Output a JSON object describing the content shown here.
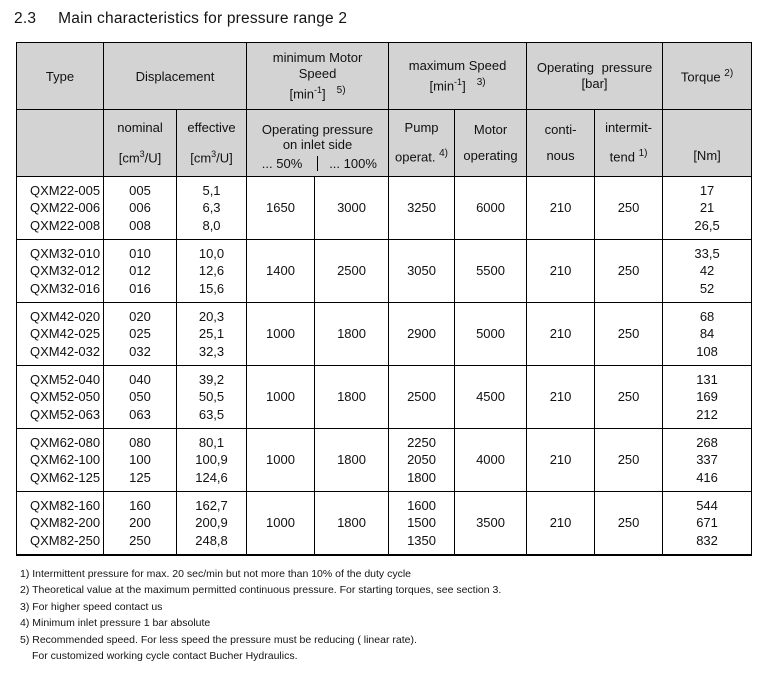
{
  "title": {
    "number": "2.3",
    "text": "Main characteristics for pressure range 2"
  },
  "table": {
    "header": {
      "type": "Type",
      "displacement": "Displacement",
      "min_speed": {
        "line1": "minimum Motor",
        "line2": "Speed",
        "unit_base": "[min",
        "unit_sup": "-1",
        "unit_close": "]",
        "footnote": "5)"
      },
      "max_speed": {
        "line1": "maximum Speed",
        "unit_base": "[min",
        "unit_sup": "-1",
        "unit_close": "]",
        "footnote": "3)"
      },
      "op_pressure": {
        "line1": "Operating pressure",
        "unit": "[bar]"
      },
      "torque": {
        "label": "Torque",
        "footnote": "2)"
      },
      "sub": {
        "nominal": "nominal",
        "effective": "effective",
        "cm_base": "[cm",
        "cm_sup": "3",
        "cm_close": "/U]",
        "inlet_title1": "Operating pressure",
        "inlet_title2": "on inlet side",
        "p50": "... 50%",
        "p100": "... 100%",
        "pump1": "Pump",
        "pump2": "operat.",
        "pump_fn": "4)",
        "motor1": "Motor",
        "motor2": "operating",
        "conti1": "conti-",
        "conti2": "nous",
        "intermit1": "intermit-",
        "intermit2": "tend",
        "intermit_fn": "1)",
        "nm": "[Nm]"
      }
    },
    "groups": [
      {
        "types": [
          "QXM22-005",
          "QXM22-006",
          "QXM22-008"
        ],
        "nominal": [
          "005",
          "006",
          "008"
        ],
        "effective": [
          "5,1",
          "6,3",
          "8,0"
        ],
        "min50": "1650",
        "min100": "3000",
        "pump": [
          "3250"
        ],
        "motor": "6000",
        "conti": "210",
        "intermit": "250",
        "torque": [
          "17",
          "21",
          "26,5"
        ]
      },
      {
        "types": [
          "QXM32-010",
          "QXM32-012",
          "QXM32-016"
        ],
        "nominal": [
          "010",
          "012",
          "016"
        ],
        "effective": [
          "10,0",
          "12,6",
          "15,6"
        ],
        "min50": "1400",
        "min100": "2500",
        "pump": [
          "3050"
        ],
        "motor": "5500",
        "conti": "210",
        "intermit": "250",
        "torque": [
          "33,5",
          "42",
          "52"
        ]
      },
      {
        "types": [
          "QXM42-020",
          "QXM42-025",
          "QXM42-032"
        ],
        "nominal": [
          "020",
          "025",
          "032"
        ],
        "effective": [
          "20,3",
          "25,1",
          "32,3"
        ],
        "min50": "1000",
        "min100": "1800",
        "pump": [
          "2900"
        ],
        "motor": "5000",
        "conti": "210",
        "intermit": "250",
        "torque": [
          "68",
          "84",
          "108"
        ]
      },
      {
        "types": [
          "QXM52-040",
          "QXM52-050",
          "QXM52-063"
        ],
        "nominal": [
          "040",
          "050",
          "063"
        ],
        "effective": [
          "39,2",
          "50,5",
          "63,5"
        ],
        "min50": "1000",
        "min100": "1800",
        "pump": [
          "2500"
        ],
        "motor": "4500",
        "conti": "210",
        "intermit": "250",
        "torque": [
          "131",
          "169",
          "212"
        ]
      },
      {
        "types": [
          "QXM62-080",
          "QXM62-100",
          "QXM62-125"
        ],
        "nominal": [
          "080",
          "100",
          "125"
        ],
        "effective": [
          "80,1",
          "100,9",
          "124,6"
        ],
        "min50": "1000",
        "min100": "1800",
        "pump": [
          "2250",
          "2050",
          "1800"
        ],
        "motor": "4000",
        "conti": "210",
        "intermit": "250",
        "torque": [
          "268",
          "337",
          "416"
        ]
      },
      {
        "types": [
          "QXM82-160",
          "QXM82-200",
          "QXM82-250"
        ],
        "nominal": [
          "160",
          "200",
          "250"
        ],
        "effective": [
          "162,7",
          "200,9",
          "248,8"
        ],
        "min50": "1000",
        "min100": "1800",
        "pump": [
          "1600",
          "1500",
          "1350"
        ],
        "motor": "3500",
        "conti": "210",
        "intermit": "250",
        "torque": [
          "544",
          "671",
          "832"
        ]
      }
    ]
  },
  "footnotes": [
    "1) Intermittent pressure for max. 20 sec/min but not more than 10% of the duty cycle",
    "2) Theoretical value at the maximum permitted continuous pressure. For starting torques, see section 3.",
    "3) For higher speed contact us",
    "4) Minimum inlet pressure 1 bar absolute",
    "5) Recommended speed. For less speed the pressure must be reducing ( linear rate).",
    "For customized working cycle contact Bucher Hydraulics."
  ]
}
